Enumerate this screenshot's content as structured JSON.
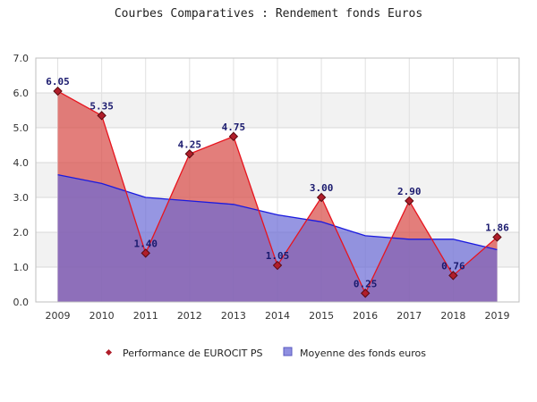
{
  "chart_data": {
    "type": "area",
    "title": "Courbes Comparatives : Rendement fonds Euros",
    "x": [
      "2009",
      "2010",
      "2011",
      "2012",
      "2013",
      "2014",
      "2015",
      "2016",
      "2017",
      "2018",
      "2019"
    ],
    "ylim": [
      0,
      7
    ],
    "yticks": [
      "0.0",
      "1.0",
      "2.0",
      "3.0",
      "4.0",
      "5.0",
      "6.0",
      "7.0"
    ],
    "grid": true,
    "legend_position": "bottom",
    "series": [
      {
        "name": "Performance de EUROCIT PS",
        "values": [
          6.05,
          5.35,
          1.4,
          4.25,
          4.75,
          1.05,
          3.0,
          0.25,
          2.9,
          0.76,
          1.86
        ],
        "labels": [
          "6.05",
          "5.35",
          "1.40",
          "4.25",
          "4.75",
          "1.05",
          "3.00",
          "0.25",
          "2.90",
          "0.76",
          "1.86"
        ],
        "line_color": "#e8141e",
        "fill_color": "#d9534f",
        "marker_color": "#b01e2a"
      },
      {
        "name": "Moyenne des fonds euros",
        "values": [
          3.65,
          3.4,
          3.0,
          2.9,
          2.8,
          2.5,
          2.3,
          1.9,
          1.8,
          1.8,
          1.5
        ],
        "line_color": "#1a1adf",
        "fill_color": "#6a6ad6"
      }
    ]
  }
}
